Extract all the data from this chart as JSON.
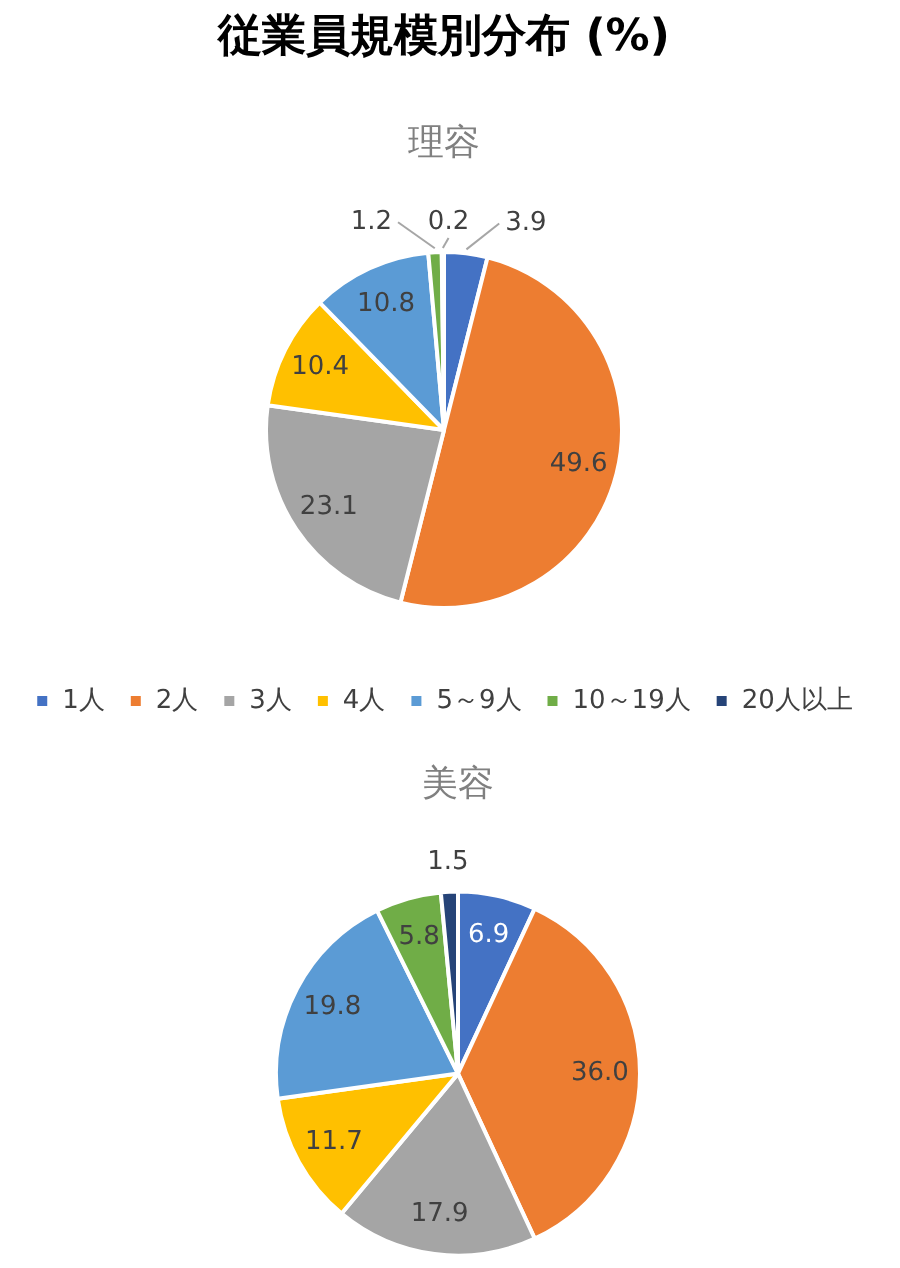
{
  "chart_data": {
    "type": "pie",
    "title": "従業員規模別分布 (%)",
    "categories": [
      "1人",
      "2人",
      "3人",
      "4人",
      "5～9人",
      "10～19人",
      "20人以上"
    ],
    "colors": [
      "#4472c4",
      "#ed7d31",
      "#a5a5a5",
      "#ffc000",
      "#5b9bd5",
      "#70ad47",
      "#264478"
    ],
    "series": [
      {
        "name": "理容",
        "values": [
          3.9,
          49.6,
          23.1,
          10.4,
          10.8,
          1.2,
          0.2
        ],
        "value_labels": [
          "3.9",
          "49.6",
          "23.1",
          "10.4",
          "10.8",
          "1.2",
          "0.2"
        ]
      },
      {
        "name": "美容",
        "values": [
          6.9,
          36.0,
          17.9,
          11.7,
          19.8,
          5.8,
          1.5
        ],
        "value_labels": [
          "6.9",
          "36.0",
          "17.9",
          "11.7",
          "19.8",
          "5.8",
          "1.5"
        ]
      }
    ],
    "legend": "center"
  }
}
